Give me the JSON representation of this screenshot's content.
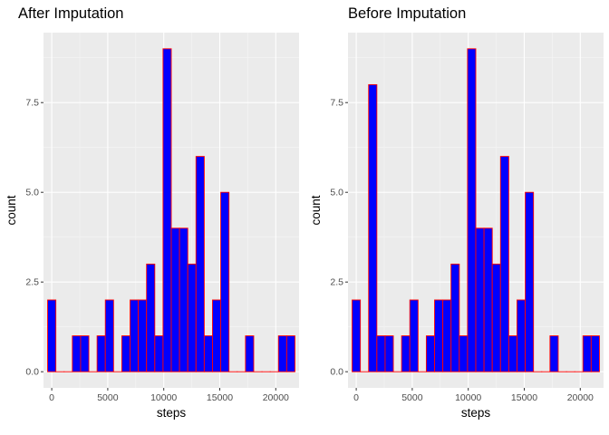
{
  "chart_data": [
    {
      "type": "bar",
      "title": "After Imputation",
      "xlabel": "steps",
      "ylabel": "count",
      "bins": [
        {
          "x": 0,
          "count": 2
        },
        {
          "x": 736,
          "count": 0
        },
        {
          "x": 1472,
          "count": 0
        },
        {
          "x": 2208,
          "count": 1
        },
        {
          "x": 2944,
          "count": 1
        },
        {
          "x": 3680,
          "count": 0
        },
        {
          "x": 4416,
          "count": 1
        },
        {
          "x": 5152,
          "count": 2
        },
        {
          "x": 5888,
          "count": 0
        },
        {
          "x": 6624,
          "count": 1
        },
        {
          "x": 7360,
          "count": 2
        },
        {
          "x": 8096,
          "count": 2
        },
        {
          "x": 8832,
          "count": 3
        },
        {
          "x": 9568,
          "count": 1
        },
        {
          "x": 10304,
          "count": 9
        },
        {
          "x": 11040,
          "count": 4
        },
        {
          "x": 11776,
          "count": 4
        },
        {
          "x": 12512,
          "count": 3
        },
        {
          "x": 13248,
          "count": 6
        },
        {
          "x": 13984,
          "count": 1
        },
        {
          "x": 14720,
          "count": 2
        },
        {
          "x": 15456,
          "count": 5
        },
        {
          "x": 16192,
          "count": 0
        },
        {
          "x": 16928,
          "count": 0
        },
        {
          "x": 17664,
          "count": 1
        },
        {
          "x": 18400,
          "count": 0
        },
        {
          "x": 19136,
          "count": 0
        },
        {
          "x": 19872,
          "count": 0
        },
        {
          "x": 20608,
          "count": 1
        },
        {
          "x": 21344,
          "count": 1
        }
      ],
      "bin_width": 736,
      "xlim": [
        -736,
        22080
      ],
      "ylim": [
        -0.45,
        9.45
      ],
      "x_ticks": [
        0,
        5000,
        10000,
        15000,
        20000
      ],
      "x_tick_labels": [
        "0",
        "5000",
        "10000",
        "15000",
        "20000"
      ],
      "y_ticks": [
        0,
        2.5,
        5,
        7.5
      ],
      "y_tick_labels": [
        "0.0",
        "2.5",
        "5.0",
        "7.5"
      ],
      "fill": "#0000ff",
      "outline": "#ff0000",
      "panel_background": "#ebebeb",
      "grid": true
    },
    {
      "type": "bar",
      "title": "Before Imputation",
      "xlabel": "steps",
      "ylabel": "count",
      "bins": [
        {
          "x": 0,
          "count": 2
        },
        {
          "x": 736,
          "count": 0
        },
        {
          "x": 1472,
          "count": 8
        },
        {
          "x": 2208,
          "count": 1
        },
        {
          "x": 2944,
          "count": 1
        },
        {
          "x": 3680,
          "count": 0
        },
        {
          "x": 4416,
          "count": 1
        },
        {
          "x": 5152,
          "count": 2
        },
        {
          "x": 5888,
          "count": 0
        },
        {
          "x": 6624,
          "count": 1
        },
        {
          "x": 7360,
          "count": 2
        },
        {
          "x": 8096,
          "count": 2
        },
        {
          "x": 8832,
          "count": 3
        },
        {
          "x": 9568,
          "count": 1
        },
        {
          "x": 10304,
          "count": 9
        },
        {
          "x": 11040,
          "count": 4
        },
        {
          "x": 11776,
          "count": 4
        },
        {
          "x": 12512,
          "count": 3
        },
        {
          "x": 13248,
          "count": 6
        },
        {
          "x": 13984,
          "count": 1
        },
        {
          "x": 14720,
          "count": 2
        },
        {
          "x": 15456,
          "count": 5
        },
        {
          "x": 16192,
          "count": 0
        },
        {
          "x": 16928,
          "count": 0
        },
        {
          "x": 17664,
          "count": 1
        },
        {
          "x": 18400,
          "count": 0
        },
        {
          "x": 19136,
          "count": 0
        },
        {
          "x": 19872,
          "count": 0
        },
        {
          "x": 20608,
          "count": 1
        },
        {
          "x": 21344,
          "count": 1
        }
      ],
      "bin_width": 736,
      "xlim": [
        -736,
        22080
      ],
      "ylim": [
        -0.45,
        9.45
      ],
      "x_ticks": [
        0,
        5000,
        10000,
        15000,
        20000
      ],
      "x_tick_labels": [
        "0",
        "5000",
        "10000",
        "15000",
        "20000"
      ],
      "y_ticks": [
        0,
        2.5,
        5,
        7.5
      ],
      "y_tick_labels": [
        "0.0",
        "2.5",
        "5.0",
        "7.5"
      ],
      "fill": "#0000ff",
      "outline": "#ff0000",
      "panel_background": "#ebebeb",
      "grid": true
    }
  ]
}
